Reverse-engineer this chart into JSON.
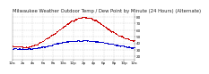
{
  "title": "Milwaukee Weather Outdoor Temp / Dew Point by Minute (24 Hours) (Alternate)",
  "background_color": "#ffffff",
  "grid_color": "#bbbbbb",
  "temp_color": "#cc0000",
  "dew_color": "#0000cc",
  "ylim": [
    15,
    85
  ],
  "xlim": [
    0,
    1440
  ],
  "ytick_values": [
    20,
    30,
    40,
    50,
    60,
    70,
    80
  ],
  "ytick_labels": [
    "20",
    "30",
    "40",
    "50",
    "60",
    "70",
    "80"
  ],
  "xtick_positions": [
    0,
    120,
    240,
    360,
    480,
    600,
    720,
    840,
    960,
    1080,
    1200,
    1320,
    1440
  ],
  "xtick_labels": [
    "12a",
    "2a",
    "4a",
    "6a",
    "8a",
    "10a",
    "12p",
    "2p",
    "4p",
    "6p",
    "8p",
    "10p",
    "12a"
  ],
  "title_fontsize": 3.8,
  "tick_fontsize": 3.0,
  "num_points": 1440,
  "seed": 17
}
